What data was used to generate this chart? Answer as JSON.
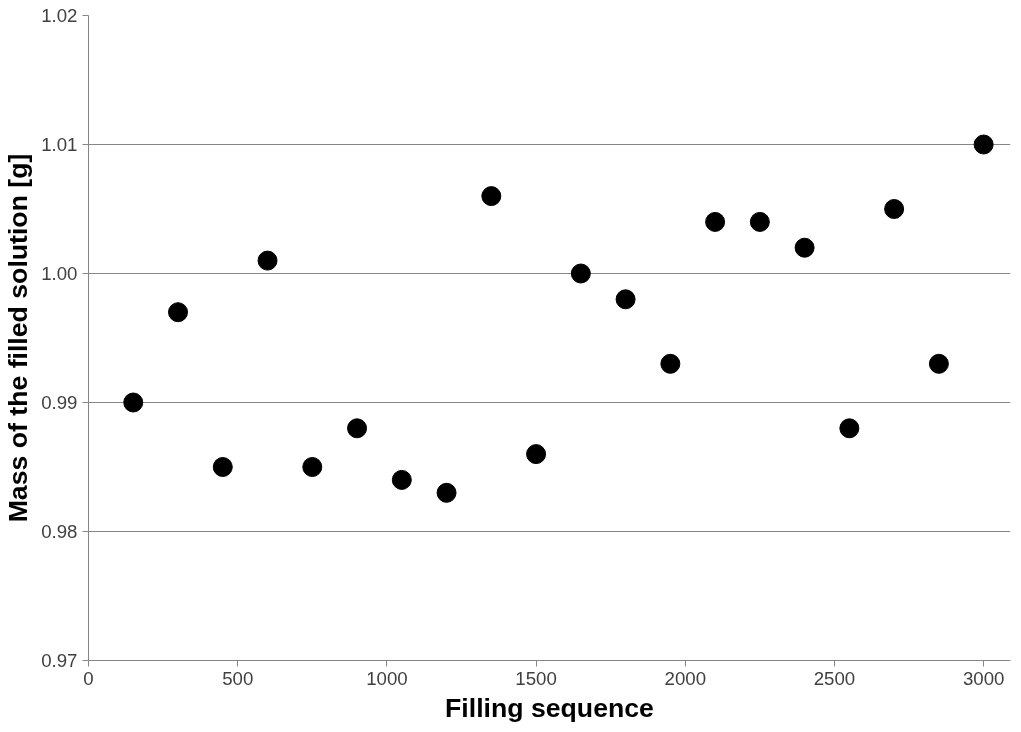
{
  "chart_data": {
    "type": "scatter",
    "xlabel": "Filling sequence",
    "ylabel": "Mass of the filled solution [g]",
    "x": [
      150,
      300,
      450,
      600,
      750,
      900,
      1050,
      1200,
      1350,
      1500,
      1650,
      1800,
      1950,
      2100,
      2250,
      2400,
      2550,
      2700,
      2850,
      3000
    ],
    "series": [
      {
        "color": "#000000",
        "values": [
          0.99,
          0.997,
          0.985,
          1.001,
          0.985,
          0.988,
          0.984,
          0.983,
          1.006,
          0.986,
          1.0,
          0.998,
          0.993,
          1.004,
          1.004,
          1.002,
          0.988,
          1.005,
          0.993,
          1.01
        ]
      }
    ],
    "xlim": [
      0,
      3090
    ],
    "ylim": [
      0.97,
      1.02
    ],
    "xticks": [
      0,
      500,
      1000,
      1500,
      2000,
      2500,
      3000
    ],
    "yticks": [
      {
        "value": 0.97,
        "label": "0.97"
      },
      {
        "value": 0.98,
        "label": "0.98"
      },
      {
        "value": 0.99,
        "label": "0.99"
      },
      {
        "value": 1.0,
        "label": "1.00"
      },
      {
        "value": 1.01,
        "label": "1.01"
      },
      {
        "value": 1.02,
        "label": "1.02"
      }
    ],
    "grid": "y",
    "marker": "circle"
  }
}
